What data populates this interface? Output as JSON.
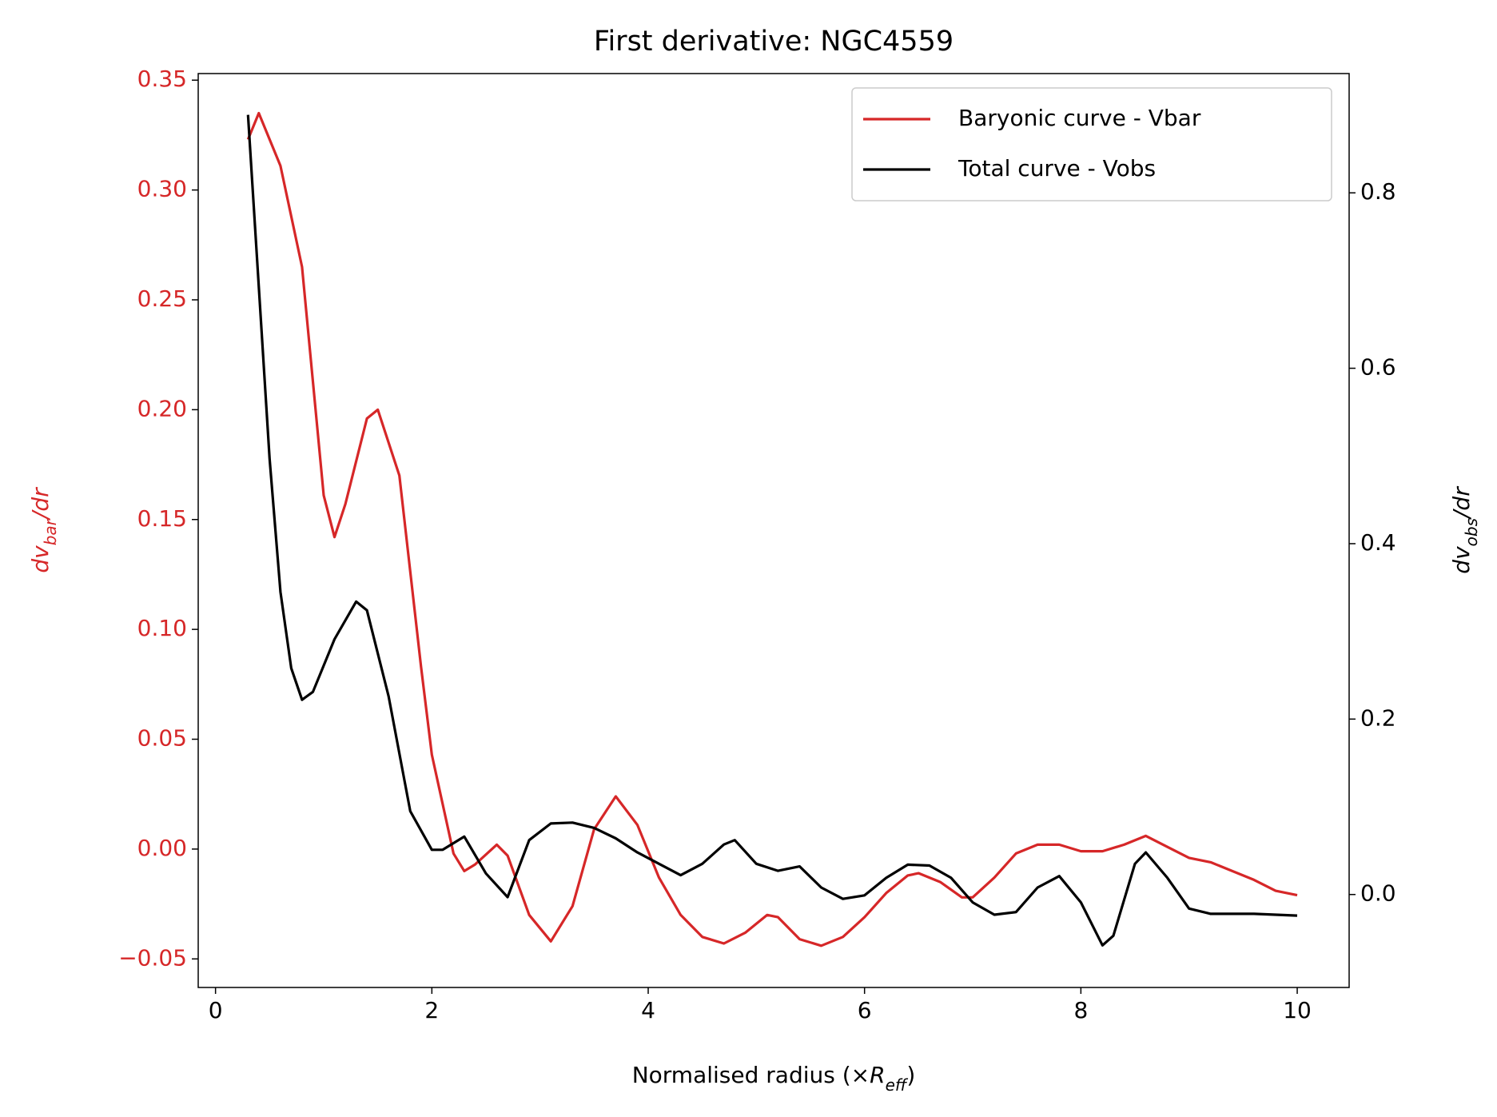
{
  "chart_data": {
    "type": "line",
    "title": "First derivative: NGC4559",
    "xlabel": {
      "main": "Normalised radius (×",
      "var": "R",
      "sub": "eff",
      "tail": ")"
    },
    "ylabel": {
      "main": "dv",
      "sub": "bar",
      "tail": "/dr"
    },
    "y2label": {
      "main": "dv",
      "sub": "obs",
      "tail": "/dr"
    },
    "xlim": [
      -0.16,
      10.48
    ],
    "ylim": [
      -0.063,
      0.353
    ],
    "y2lim": [
      -0.106,
      0.936
    ],
    "xticks": [
      0,
      2,
      4,
      6,
      8,
      10
    ],
    "yticks": [
      {
        "value": -0.05,
        "label": "−0.05"
      },
      {
        "value": 0,
        "label": "0.00"
      },
      0.05,
      {
        "value": 0.1,
        "label": "0.10"
      },
      0.15,
      {
        "value": 0.2,
        "label": "0.20"
      },
      0.25,
      {
        "value": 0.3,
        "label": "0.30"
      },
      0.35
    ],
    "y2ticks": [
      {
        "value": 0,
        "label": "0.0"
      },
      0.2,
      0.4,
      0.6,
      0.8
    ],
    "ycolor": "#d62728",
    "y2color": "#000000",
    "legend": "upper right",
    "series": [
      {
        "name": "Baryonic curve - Vbar",
        "color": "#d62728",
        "axis": "y",
        "x": [
          0.3,
          0.4,
          0.6,
          0.8,
          1.0,
          1.1,
          1.2,
          1.4,
          1.5,
          1.7,
          1.9,
          2.0,
          2.2,
          2.3,
          2.4,
          2.6,
          2.7,
          2.9,
          3.1,
          3.3,
          3.5,
          3.7,
          3.9,
          4.1,
          4.3,
          4.5,
          4.7,
          4.9,
          5.1,
          5.2,
          5.4,
          5.6,
          5.8,
          6.0,
          6.2,
          6.4,
          6.5,
          6.7,
          6.9,
          7.0,
          7.2,
          7.4,
          7.6,
          7.8,
          8.0,
          8.2,
          8.4,
          8.6,
          8.8,
          9.0,
          9.2,
          9.4,
          9.6,
          9.8,
          10.0
        ],
        "values": [
          0.323,
          0.335,
          0.311,
          0.265,
          0.161,
          0.142,
          0.157,
          0.196,
          0.2,
          0.17,
          0.083,
          0.043,
          -0.002,
          -0.01,
          -0.007,
          0.002,
          -0.003,
          -0.03,
          -0.042,
          -0.026,
          0.009,
          0.024,
          0.011,
          -0.013,
          -0.03,
          -0.04,
          -0.043,
          -0.038,
          -0.03,
          -0.031,
          -0.041,
          -0.044,
          -0.04,
          -0.031,
          -0.02,
          -0.012,
          -0.011,
          -0.015,
          -0.022,
          -0.022,
          -0.013,
          -0.002,
          0.002,
          0.002,
          -0.001,
          -0.001,
          0.002,
          0.006,
          0.001,
          -0.004,
          -0.006,
          -0.01,
          -0.014,
          -0.019,
          -0.021
        ]
      },
      {
        "name": "Total curve - Vobs",
        "color": "#000000",
        "axis": "y2",
        "x": [
          0.3,
          0.4,
          0.5,
          0.6,
          0.7,
          0.8,
          0.9,
          1.1,
          1.3,
          1.4,
          1.6,
          1.8,
          2.0,
          2.1,
          2.3,
          2.5,
          2.7,
          2.9,
          3.1,
          3.3,
          3.5,
          3.7,
          3.9,
          4.1,
          4.3,
          4.5,
          4.7,
          4.8,
          5.0,
          5.2,
          5.4,
          5.6,
          5.8,
          6.0,
          6.2,
          6.4,
          6.6,
          6.8,
          7.0,
          7.2,
          7.4,
          7.6,
          7.8,
          8.0,
          8.2,
          8.3,
          8.5,
          8.6,
          8.8,
          9.0,
          9.2,
          9.6,
          10.0
        ],
        "values": [
          0.889,
          0.693,
          0.497,
          0.345,
          0.258,
          0.222,
          0.231,
          0.291,
          0.334,
          0.324,
          0.226,
          0.095,
          0.051,
          0.051,
          0.066,
          0.024,
          -0.003,
          0.062,
          0.081,
          0.082,
          0.076,
          0.064,
          0.048,
          0.035,
          0.022,
          0.035,
          0.057,
          0.062,
          0.035,
          0.027,
          0.032,
          0.008,
          -0.005,
          -0.001,
          0.019,
          0.034,
          0.033,
          0.019,
          -0.009,
          -0.023,
          -0.02,
          0.008,
          0.021,
          -0.009,
          -0.058,
          -0.047,
          0.035,
          0.048,
          0.019,
          -0.016,
          -0.022,
          -0.022,
          -0.024
        ]
      }
    ]
  }
}
